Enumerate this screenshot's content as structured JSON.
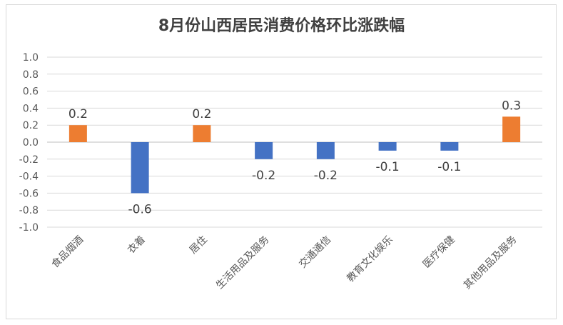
{
  "chart_data": {
    "type": "bar",
    "title": "8月份山西居民消费价格环比涨跌幅",
    "xlabel": "",
    "ylabel": "",
    "categories": [
      "食品烟酒",
      "衣着",
      "居住",
      "生活用品及服务",
      "交通通信",
      "教育文化娱乐",
      "医疗保健",
      "其他用品及服务"
    ],
    "values": [
      0.2,
      -0.6,
      0.2,
      -0.2,
      -0.2,
      -0.1,
      -0.1,
      0.3
    ],
    "data_labels": [
      "0.2",
      "-0.6",
      "0.2",
      "-0.2",
      "-0.2",
      "-0.1",
      "-0.1",
      "0.3"
    ],
    "ylim": [
      -1.0,
      1.0
    ],
    "yticks": [
      "1.0",
      "0.8",
      "0.6",
      "0.4",
      "0.2",
      "0.0",
      "-0.2",
      "-0.4",
      "-0.6",
      "-0.8",
      "-1.0"
    ],
    "ytick_values": [
      1.0,
      0.8,
      0.6,
      0.4,
      0.2,
      0.0,
      -0.2,
      -0.4,
      -0.6,
      -0.8,
      -1.0
    ],
    "grid": true,
    "legend": "none",
    "colors": {
      "positive": "#ED7D31",
      "negative": "#4472C4",
      "grid": "#D9D9D9",
      "axis": "#BFBFBF"
    }
  }
}
